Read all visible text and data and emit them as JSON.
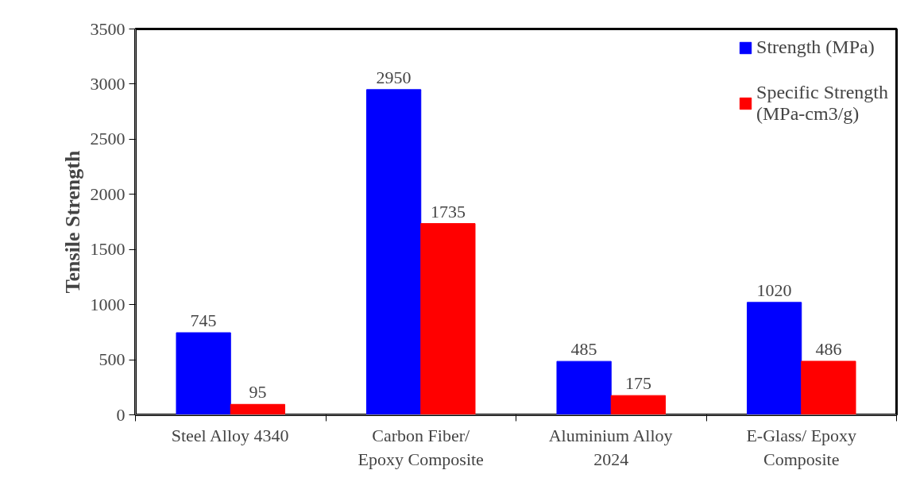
{
  "chart_data": {
    "type": "bar",
    "ylabel": "Tensile Strength",
    "categories": [
      "Steel Alloy 4340",
      "Carbon Fiber/\nEpoxy Composite",
      "Aluminium Alloy\n2024",
      "E-Glass/ Epoxy\nComposite"
    ],
    "series": [
      {
        "name": "Strength (MPa)",
        "color": "#0000ff",
        "values": [
          745,
          2950,
          485,
          1020
        ]
      },
      {
        "name": "Specific Strength\n(MPa-cm3/g)",
        "color": "#ff0000",
        "values": [
          95,
          1735,
          175,
          486
        ]
      }
    ],
    "ylim": [
      0,
      3500
    ],
    "yticks": [
      0,
      500,
      1000,
      1500,
      2000,
      2500,
      3000,
      3500
    ],
    "grid": false,
    "legend": "top right",
    "data_labels": true
  }
}
